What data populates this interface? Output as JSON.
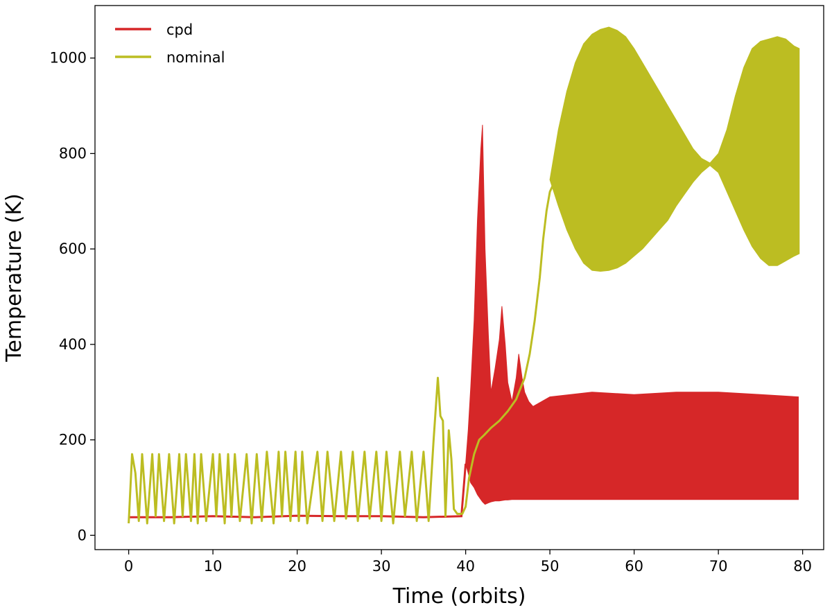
{
  "chart_data": {
    "type": "line",
    "title": "",
    "xlabel": "Time (orbits)",
    "ylabel": "Temperature (K)",
    "xlim": [
      -4,
      82.5
    ],
    "ylim": [
      -30,
      1110
    ],
    "xticks": [
      0,
      10,
      20,
      30,
      40,
      50,
      60,
      70,
      80
    ],
    "yticks": [
      0,
      200,
      400,
      600,
      800,
      1000
    ],
    "grid": false,
    "legend_position": "top-left",
    "series": [
      {
        "name": "cpd",
        "color": "#d62728",
        "x": [
          0,
          5,
          10,
          15,
          20,
          25,
          30,
          35,
          39.5,
          40.0,
          40.3,
          40.6,
          41.0,
          41.4,
          41.8,
          42.0,
          42.3,
          42.7,
          43.0,
          43.5,
          44.0,
          44.3,
          44.7,
          45.0,
          45.5,
          46.0,
          46.3,
          46.7,
          47.0,
          47.5,
          48,
          50,
          55,
          60,
          65,
          70,
          75,
          79.5
        ],
        "values": [
          38,
          38,
          40,
          38,
          41,
          40,
          40,
          38,
          40,
          150,
          220,
          310,
          450,
          660,
          810,
          860,
          600,
          420,
          300,
          350,
          410,
          480,
          400,
          320,
          280,
          330,
          380,
          330,
          300,
          280,
          270,
          290,
          300,
          295,
          300,
          300,
          295,
          290
        ],
        "lower": [
          38,
          38,
          40,
          38,
          41,
          40,
          40,
          38,
          40,
          150,
          130,
          110,
          100,
          85,
          75,
          70,
          65,
          68,
          70,
          72,
          72,
          73,
          74,
          74,
          75,
          75,
          75,
          75,
          75,
          75,
          75,
          75,
          75,
          75,
          75,
          75,
          75,
          75
        ]
      },
      {
        "name": "nominal",
        "color": "#bcbd22",
        "x": [
          0,
          0.4,
          0.8,
          1.2,
          1.6,
          2.2,
          2.8,
          3.2,
          3.6,
          4.2,
          4.8,
          5.4,
          6.0,
          6.4,
          6.8,
          7.4,
          7.8,
          8.2,
          8.6,
          9.2,
          10.0,
          10.4,
          10.8,
          11.4,
          11.8,
          12.2,
          12.6,
          13.2,
          14.0,
          14.6,
          15.2,
          15.8,
          16.4,
          17.2,
          17.8,
          18.2,
          18.6,
          19.2,
          19.8,
          20.2,
          20.6,
          21.2,
          22.4,
          23.0,
          23.6,
          24.4,
          25.2,
          25.8,
          26.6,
          27.2,
          28.0,
          28.6,
          29.4,
          30.0,
          30.6,
          31.4,
          32.2,
          32.8,
          33.6,
          34.2,
          35.0,
          35.6,
          36.2,
          36.7,
          37.0,
          37.3,
          37.6,
          38.0,
          38.3,
          38.6,
          39.0,
          39.6,
          40.0,
          40.4,
          41.0,
          41.6,
          42.2,
          43.0,
          44.0,
          45.0,
          46.0,
          47.0,
          47.6,
          48.2,
          48.8,
          49.2,
          49.6,
          50.0,
          50.4
        ],
        "values": [
          25,
          170,
          130,
          30,
          170,
          25,
          170,
          40,
          170,
          30,
          170,
          25,
          170,
          40,
          170,
          30,
          170,
          25,
          170,
          30,
          170,
          40,
          170,
          25,
          170,
          40,
          170,
          30,
          170,
          25,
          170,
          30,
          175,
          25,
          175,
          40,
          175,
          30,
          175,
          30,
          175,
          25,
          175,
          30,
          175,
          30,
          175,
          35,
          175,
          30,
          175,
          35,
          175,
          30,
          175,
          25,
          175,
          40,
          175,
          30,
          175,
          30,
          200,
          330,
          250,
          240,
          40,
          220,
          160,
          55,
          45,
          45,
          60,
          120,
          170,
          200,
          210,
          225,
          240,
          260,
          285,
          330,
          380,
          450,
          540,
          620,
          680,
          720,
          735
        ],
        "envelope": {
          "x": [
            50,
            51,
            52,
            53,
            54,
            55,
            56,
            57,
            58,
            59,
            60,
            61,
            62,
            63,
            64,
            65,
            66,
            67,
            68,
            69,
            70,
            71,
            72,
            73,
            74,
            75,
            76,
            77,
            78,
            79,
            79.6
          ],
          "upper": [
            745,
            850,
            930,
            990,
            1030,
            1050,
            1060,
            1065,
            1058,
            1045,
            1020,
            990,
            960,
            930,
            900,
            870,
            840,
            810,
            790,
            780,
            800,
            850,
            920,
            980,
            1020,
            1035,
            1040,
            1045,
            1040,
            1025,
            1020
          ],
          "lower": [
            745,
            690,
            640,
            600,
            570,
            555,
            553,
            555,
            560,
            570,
            585,
            600,
            620,
            640,
            660,
            690,
            715,
            740,
            760,
            775,
            760,
            720,
            680,
            640,
            605,
            580,
            565,
            565,
            575,
            585,
            590
          ]
        }
      }
    ]
  }
}
